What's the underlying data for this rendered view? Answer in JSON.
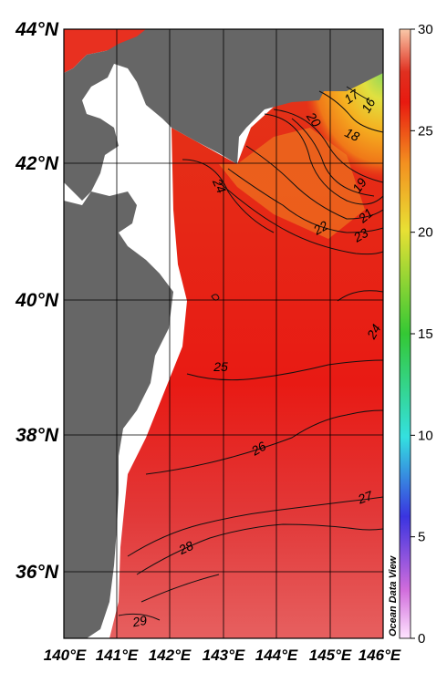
{
  "map": {
    "lat_labels": [
      "44°N",
      "42°N",
      "40°N",
      "38°N",
      "36°N"
    ],
    "lon_labels": [
      "140°E",
      "141°E",
      "142°E",
      "143°E",
      "144°E",
      "145°E",
      "146°E"
    ],
    "contour_labels": [
      "16",
      "17",
      "18",
      "19",
      "20",
      "21",
      "22",
      "23",
      "24",
      "24",
      "25",
      "26",
      "27",
      "28",
      "29"
    ],
    "land_color": "#666666",
    "nodata_color": "#ffffff"
  },
  "colorbar": {
    "ticks": [
      "30",
      "25",
      "20",
      "15",
      "10",
      "5",
      "0"
    ],
    "range": [
      0,
      30
    ],
    "colors": [
      "#ffe4ff",
      "#d06cdc",
      "#3a34e0",
      "#34e0e0",
      "#34c834",
      "#e8e034",
      "#f39020",
      "#e81a10",
      "#f9c8a8"
    ]
  },
  "credit": "Ocean Data View"
}
